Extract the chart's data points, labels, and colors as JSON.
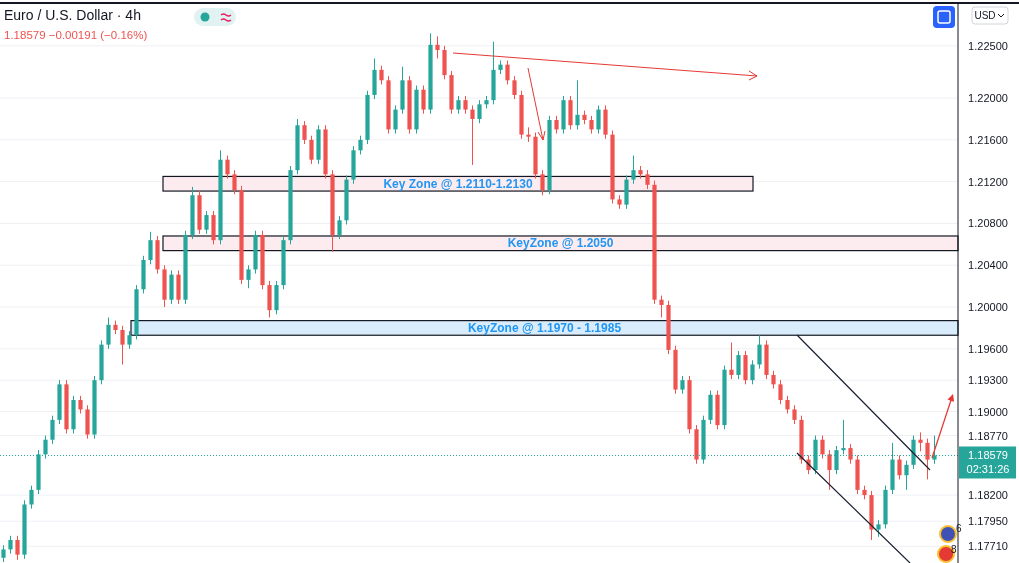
{
  "chart_data": {
    "type": "candlestick",
    "title": "Euro / U.S. Dollar · 4h",
    "subtitle": "1.18579 −0.00191 (−0.16%)",
    "categories": [
      null,
      null,
      null,
      null,
      null,
      null,
      null,
      null,
      null,
      null,
      null,
      null,
      null,
      null,
      null,
      null,
      null,
      null,
      null,
      null,
      null,
      null,
      null,
      null,
      null,
      null,
      null,
      null,
      null,
      null,
      null,
      null,
      null,
      null,
      null,
      null,
      null,
      null,
      null,
      null,
      null,
      null,
      null,
      null,
      null,
      null,
      null,
      null,
      null,
      null,
      null,
      null,
      null,
      null,
      null,
      null,
      null,
      null,
      null,
      null,
      null,
      null,
      null,
      null,
      null,
      null,
      null,
      null,
      null,
      null,
      null,
      null,
      null,
      null,
      null,
      null,
      null,
      null,
      null,
      null,
      null,
      null,
      null,
      null,
      null,
      null,
      null,
      null,
      null,
      null,
      null,
      null,
      null,
      null,
      null,
      null,
      null,
      null,
      null,
      null,
      null,
      null,
      null,
      null,
      null,
      null,
      null,
      null,
      null,
      null,
      null,
      null,
      null,
      null,
      null,
      null,
      null,
      null,
      null,
      null,
      null,
      null,
      null,
      null,
      null,
      null,
      null,
      null,
      null,
      null,
      null,
      null,
      null,
      null
    ],
    "ohlc": [
      [
        1.176,
        1.1772,
        1.1756,
        1.1768
      ],
      [
        1.1768,
        1.1781,
        1.1764,
        1.1777
      ],
      [
        1.1777,
        1.1781,
        1.1758,
        1.1763
      ],
      [
        1.1763,
        1.1815,
        1.1759,
        1.1811
      ],
      [
        1.1811,
        1.1829,
        1.1807,
        1.1825
      ],
      [
        1.1825,
        1.1863,
        1.1821,
        1.1859
      ],
      [
        1.1859,
        1.1877,
        1.1855,
        1.1873
      ],
      [
        1.1873,
        1.1896,
        1.1869,
        1.1892
      ],
      [
        1.1892,
        1.193,
        1.1888,
        1.1926
      ],
      [
        1.1926,
        1.193,
        1.1879,
        1.1883
      ],
      [
        1.1883,
        1.1915,
        1.1879,
        1.1911
      ],
      [
        1.1911,
        1.1915,
        1.1898,
        1.1902
      ],
      [
        1.1902,
        1.1906,
        1.1874,
        1.1878
      ],
      [
        1.1878,
        1.1934,
        1.1874,
        1.193
      ],
      [
        1.193,
        1.1968,
        1.1926,
        1.1964
      ],
      [
        1.1964,
        1.199,
        1.196,
        1.1983
      ],
      [
        1.1983,
        1.1987,
        1.1974,
        1.1978
      ],
      [
        1.1978,
        1.1982,
        1.1945,
        1.1964
      ],
      [
        1.1964,
        1.1977,
        1.196,
        1.1973
      ],
      [
        1.1973,
        1.2021,
        1.1969,
        1.2017
      ],
      [
        1.2017,
        1.2049,
        1.2013,
        1.2045
      ],
      [
        1.2045,
        1.2072,
        1.2041,
        1.2064
      ],
      [
        1.2064,
        1.2068,
        1.2032,
        1.2036
      ],
      [
        1.2036,
        1.204,
        1.2,
        1.2007
      ],
      [
        1.2007,
        1.2035,
        1.2003,
        1.2031
      ],
      [
        1.2031,
        1.2035,
        1.2003,
        1.2007
      ],
      [
        1.2007,
        1.2073,
        1.2003,
        1.2069
      ],
      [
        1.2069,
        1.2115,
        1.2065,
        1.2107
      ],
      [
        1.2107,
        1.2111,
        1.207,
        1.2074
      ],
      [
        1.2074,
        1.2092,
        1.207,
        1.2088
      ],
      [
        1.2088,
        1.2092,
        1.206,
        1.2064
      ],
      [
        1.2064,
        1.215,
        1.206,
        1.2141
      ],
      [
        1.2141,
        1.2145,
        1.2123,
        1.2127
      ],
      [
        1.2127,
        1.2131,
        1.2108,
        1.2112
      ],
      [
        1.2112,
        1.2116,
        1.2022,
        1.2026
      ],
      [
        1.2026,
        1.204,
        1.2018,
        1.2036
      ],
      [
        1.2036,
        1.2073,
        1.2032,
        1.2069
      ],
      [
        1.2069,
        1.2073,
        1.2017,
        1.2021
      ],
      [
        1.2021,
        1.2025,
        1.199,
        1.1997
      ],
      [
        1.1997,
        1.2025,
        1.1993,
        1.2021
      ],
      [
        1.2021,
        1.2068,
        1.2017,
        1.2064
      ],
      [
        1.2064,
        1.2135,
        1.206,
        1.2131
      ],
      [
        1.2131,
        1.218,
        1.2127,
        1.2174
      ],
      [
        1.2174,
        1.2178,
        1.2156,
        1.216
      ],
      [
        1.216,
        1.2164,
        1.2137,
        1.2141
      ],
      [
        1.2141,
        1.2174,
        1.2137,
        1.217
      ],
      [
        1.217,
        1.2174,
        1.2123,
        1.2127
      ],
      [
        1.2127,
        1.2131,
        1.2053,
        1.2069
      ],
      [
        1.2069,
        1.2087,
        1.2065,
        1.2083
      ],
      [
        1.2083,
        1.2126,
        1.2079,
        1.2122
      ],
      [
        1.2122,
        1.2154,
        1.2118,
        1.215
      ],
      [
        1.215,
        1.2164,
        1.2146,
        1.216
      ],
      [
        1.216,
        1.2207,
        1.2156,
        1.2203
      ],
      [
        1.2203,
        1.2238,
        1.2199,
        1.2227
      ],
      [
        1.2227,
        1.2231,
        1.2213,
        1.2217
      ],
      [
        1.2217,
        1.2221,
        1.2166,
        1.217
      ],
      [
        1.217,
        1.2193,
        1.2166,
        1.2189
      ],
      [
        1.2189,
        1.223,
        1.2185,
        1.2217
      ],
      [
        1.2217,
        1.2221,
        1.2166,
        1.217
      ],
      [
        1.217,
        1.2212,
        1.2166,
        1.2208
      ],
      [
        1.2208,
        1.2212,
        1.2185,
        1.2189
      ],
      [
        1.2189,
        1.2262,
        1.2185,
        1.2251
      ],
      [
        1.2251,
        1.2259,
        1.2238,
        1.2246
      ],
      [
        1.2246,
        1.225,
        1.2218,
        1.2222
      ],
      [
        1.2222,
        1.2226,
        1.2185,
        1.2189
      ],
      [
        1.2189,
        1.2202,
        1.2185,
        1.2198
      ],
      [
        1.2198,
        1.2202,
        1.2185,
        1.2189
      ],
      [
        1.2189,
        1.2193,
        1.2136,
        1.218
      ],
      [
        1.218,
        1.2198,
        1.2176,
        1.2194
      ],
      [
        1.2194,
        1.2202,
        1.219,
        1.2198
      ],
      [
        1.2198,
        1.2254,
        1.2194,
        1.2227
      ],
      [
        1.2227,
        1.2236,
        1.2223,
        1.2232
      ],
      [
        1.2232,
        1.2236,
        1.2213,
        1.2217
      ],
      [
        1.2217,
        1.2221,
        1.2199,
        1.2203
      ],
      [
        1.2203,
        1.2207,
        1.2161,
        1.2165
      ],
      [
        1.2165,
        1.2172,
        1.2158,
        1.2163
      ],
      [
        1.2163,
        1.2167,
        1.2123,
        1.2127
      ],
      [
        1.2127,
        1.2131,
        1.2107,
        1.2112
      ],
      [
        1.2112,
        1.2183,
        1.2108,
        1.2179
      ],
      [
        1.2179,
        1.2183,
        1.2166,
        1.217
      ],
      [
        1.217,
        1.2202,
        1.2166,
        1.2198
      ],
      [
        1.2198,
        1.2202,
        1.217,
        1.2174
      ],
      [
        1.2174,
        1.2217,
        1.217,
        1.2184
      ],
      [
        1.2184,
        1.2188,
        1.2175,
        1.2179
      ],
      [
        1.2179,
        1.2183,
        1.2166,
        1.217
      ],
      [
        1.217,
        1.2193,
        1.2166,
        1.2189
      ],
      [
        1.2189,
        1.2193,
        1.2161,
        1.2165
      ],
      [
        1.2165,
        1.2169,
        1.2099,
        1.2103
      ],
      [
        1.2103,
        1.2107,
        1.2094,
        1.2098
      ],
      [
        1.2098,
        1.2126,
        1.2094,
        1.2122
      ],
      [
        1.2122,
        1.2145,
        1.2118,
        1.2131
      ],
      [
        1.2131,
        1.2135,
        1.2123,
        1.2127
      ],
      [
        1.2127,
        1.2131,
        1.2113,
        1.2117
      ],
      [
        1.2117,
        1.2121,
        1.2003,
        1.2007
      ],
      [
        1.2007,
        1.2011,
        1.199,
        1.2002
      ],
      [
        1.2002,
        1.2006,
        1.1955,
        1.1959
      ],
      [
        1.1959,
        1.1963,
        1.1917,
        1.1921
      ],
      [
        1.1921,
        1.1934,
        1.1917,
        1.193
      ],
      [
        1.193,
        1.1934,
        1.1879,
        1.1883
      ],
      [
        1.1883,
        1.1887,
        1.185,
        1.1854
      ],
      [
        1.1854,
        1.1896,
        1.185,
        1.1892
      ],
      [
        1.1892,
        1.192,
        1.1888,
        1.1916
      ],
      [
        1.1916,
        1.192,
        1.1883,
        1.1887
      ],
      [
        1.1887,
        1.1944,
        1.1883,
        1.194
      ],
      [
        1.194,
        1.1966,
        1.1931,
        1.1935
      ],
      [
        1.1935,
        1.1958,
        1.1931,
        1.1954
      ],
      [
        1.1954,
        1.1958,
        1.1926,
        1.193
      ],
      [
        1.193,
        1.1949,
        1.1926,
        1.1945
      ],
      [
        1.1945,
        1.1973,
        1.1941,
        1.1964
      ],
      [
        1.1964,
        1.1968,
        1.1931,
        1.1935
      ],
      [
        1.1935,
        1.1939,
        1.1922,
        1.1926
      ],
      [
        1.1926,
        1.193,
        1.1907,
        1.1911
      ],
      [
        1.1911,
        1.1915,
        1.1898,
        1.1902
      ],
      [
        1.1902,
        1.1906,
        1.1888,
        1.1892
      ],
      [
        1.1892,
        1.1896,
        1.185,
        1.1854
      ],
      [
        1.1854,
        1.1858,
        1.184,
        1.1844
      ],
      [
        1.1844,
        1.1877,
        1.184,
        1.1873
      ],
      [
        1.1873,
        1.1877,
        1.1855,
        1.1859
      ],
      [
        1.1859,
        1.1863,
        1.1825,
        1.1844
      ],
      [
        1.1844,
        1.1867,
        1.184,
        1.1863
      ],
      [
        1.1863,
        1.1892,
        1.1859,
        1.1865
      ],
      [
        1.1865,
        1.1869,
        1.185,
        1.1854
      ],
      [
        1.1854,
        1.1858,
        1.1821,
        1.1825
      ],
      [
        1.1825,
        1.1829,
        1.1816,
        1.182
      ],
      [
        1.182,
        1.1824,
        1.1777,
        1.1787
      ],
      [
        1.1787,
        1.1796,
        1.178,
        1.1792
      ],
      [
        1.1792,
        1.1829,
        1.1788,
        1.1825
      ],
      [
        1.1825,
        1.187,
        1.1821,
        1.1854
      ],
      [
        1.1854,
        1.1858,
        1.1835,
        1.1839
      ],
      [
        1.1839,
        1.1853,
        1.1825,
        1.1849
      ],
      [
        1.1849,
        1.1877,
        1.1845,
        1.1873
      ],
      [
        1.1873,
        1.188,
        1.1862,
        1.187
      ],
      [
        1.187,
        1.1874,
        1.1835,
        1.1854
      ],
      [
        1.1854,
        1.1877,
        1.185,
        1.1858
      ]
    ],
    "ylim": [
      1.1755,
      1.2291
    ],
    "yticks": [
      {
        "value": 1.225,
        "label": "1.22500"
      },
      {
        "value": 1.22,
        "label": "1.22000"
      },
      {
        "value": 1.216,
        "label": "1.21600"
      },
      {
        "value": 1.212,
        "label": "1.21200"
      },
      {
        "value": 1.208,
        "label": "1.20800"
      },
      {
        "value": 1.204,
        "label": "1.20400"
      },
      {
        "value": 1.2,
        "label": "1.20000"
      },
      {
        "value": 1.196,
        "label": "1.19600"
      },
      {
        "value": 1.193,
        "label": "1.19300"
      },
      {
        "value": 1.19,
        "label": "1.19000"
      },
      {
        "value": 1.1877,
        "label": "1.18770"
      },
      {
        "value": 1.182,
        "label": "1.18200"
      },
      {
        "value": 1.1795,
        "label": "1.17950"
      },
      {
        "value": 1.1771,
        "label": "1.17710"
      }
    ],
    "grid": "y",
    "tick_labels": "y",
    "bands": [
      {
        "axis": "y",
        "from": 1.2111,
        "to": 1.2125,
        "label": "Key Zone @ 1.2110-1.2130",
        "color": "#fcecf0"
      },
      {
        "axis": "y",
        "from": 1.2054,
        "to": 1.2068,
        "label": "KeyZone @ 1.2050",
        "color": "#fcecf0"
      },
      {
        "axis": "y",
        "from": 1.1973,
        "to": 1.1987,
        "label": "KeyZone @ 1.1970 - 1.1985",
        "color": "#d9ecfb"
      }
    ],
    "ref_lines": [
      {
        "axis": "y",
        "value": 1.18579,
        "label": "1.18579",
        "color": "#26a69a",
        "line_style": "dotted"
      }
    ],
    "annotations": [
      "02:31:26",
      "USD",
      "6",
      "8"
    ]
  }
}
